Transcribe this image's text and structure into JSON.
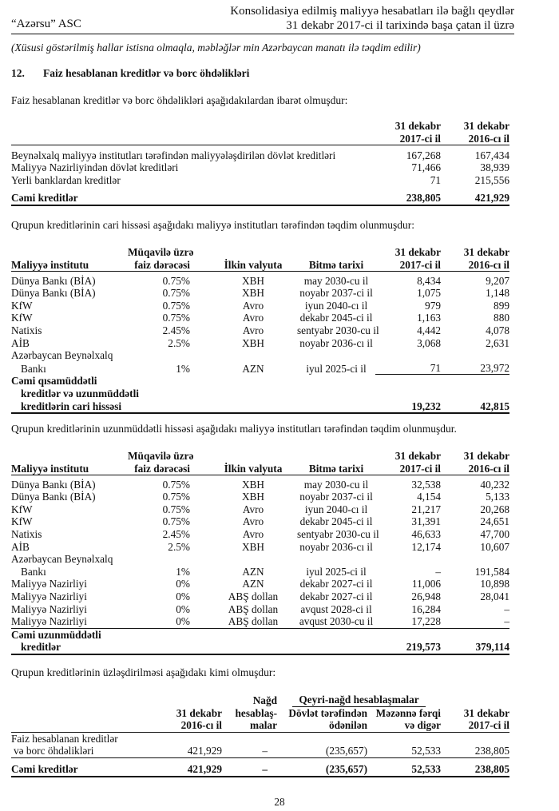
{
  "header": {
    "company": "“Azərsu” ASC",
    "title_line1": "Konsolidasiya edilmiş maliyyə hesabatları ilə bağlı qeydlər",
    "title_line2": "31 dekabr 2017-ci il tarixində başa çatan il üzrə"
  },
  "subtitle": "(Xüsusi göstərilmiş hallar istisna olmaqla, məbləğlər min Azərbaycan manatı ilə təqdim edilir)",
  "section": {
    "number": "12.",
    "title": "Faiz hesablanan kreditlər və borc öhdəlikləri"
  },
  "para1": "Faiz hesablanan kreditlər və borc öhdəlikləri aşağıdakılardan ibarət olmuşdur:",
  "table1": {
    "col_2017": [
      "31 dekabr",
      "2017-ci il"
    ],
    "col_2016": [
      "31 dekabr",
      "2016-cı il"
    ],
    "rows": [
      [
        "Beynəlxalq maliyyə institutları tərəfindən maliyyələşdirilən dövlət kreditləri",
        "167,268",
        "167,434"
      ],
      [
        "Maliyyə Nazirliyindən dövlət kreditləri",
        "71,466",
        "38,939"
      ],
      [
        "Yerli banklardan kreditlər",
        "71",
        "215,556"
      ]
    ],
    "total": [
      "Cəmi kreditlər",
      "238,805",
      "421,929"
    ]
  },
  "para2": "Qrupun kreditlərinin cari hissəsi aşağıdakı maliyyə institutları tərəfindən təqdim olunmuşdur:",
  "cols": {
    "inst": "Maliyyə institutu",
    "rate1": "Müqavilə üzrə",
    "rate2": "faiz dərəcəsi",
    "currency": "İlkin valyuta",
    "maturity": "Bitmə tarixi",
    "y2017a": "31 dekabr",
    "y2017b": "2017-ci il",
    "y2016a": "31 dekabr",
    "y2016b": "2016-cı il"
  },
  "table2": {
    "rows": [
      [
        "Dünya Bankı (BİA)",
        "0.75%",
        "XBH",
        "may 2030-cu il",
        "8,434",
        "9,207"
      ],
      [
        "Dünya Bankı (BİA)",
        "0.75%",
        "XBH",
        "noyabr 2037-ci il",
        "1,075",
        "1,148"
      ],
      [
        "KfW",
        "0.75%",
        "Avro",
        "iyun 2040-cı il",
        "979",
        "899"
      ],
      [
        "KfW",
        "0.75%",
        "Avro",
        "dekabr 2045-ci il",
        "1,163",
        "880"
      ],
      [
        "Natixis",
        "2.45%",
        "Avro",
        "sentyabr 2030-cu il",
        "4,442",
        "4,078"
      ],
      [
        "AİB",
        "2.5%",
        "XBH",
        "noyabr 2036-cı il",
        "3,068",
        "2,631"
      ]
    ],
    "aib_label1": "Azərbaycan Beynəlxalq",
    "aib_label2": "Bankı",
    "aib": [
      "1%",
      "AZN",
      "iyul 2025-ci il",
      "71",
      "23,972"
    ],
    "total_label": [
      "Cəmi qısamüddətli",
      "kreditlər və uzunmüddətli",
      "kreditlərin cari hissəsi"
    ],
    "total": [
      "19,232",
      "42,815"
    ]
  },
  "para3": "Qrupun kreditlərinin uzunmüddətli hissəsi aşağıdakı maliyyə institutları tərəfindən təqdim olunmuşdur.",
  "table3": {
    "rows": [
      [
        "Dünya Bankı (BİA)",
        "0.75%",
        "XBH",
        "may 2030-cu il",
        "32,538",
        "40,232"
      ],
      [
        "Dünya Bankı (BİA)",
        "0.75%",
        "XBH",
        "noyabr 2037-ci il",
        "4,154",
        "5,133"
      ],
      [
        "KfW",
        "0.75%",
        "Avro",
        "iyun 2040-cı il",
        "21,217",
        "20,268"
      ],
      [
        "KfW",
        "0.75%",
        "Avro",
        "dekabr 2045-ci il",
        "31,391",
        "24,651"
      ],
      [
        "Natixis",
        "2.45%",
        "Avro",
        "sentyabr 2030-cu il",
        "46,633",
        "47,700"
      ],
      [
        "AİB",
        "2.5%",
        "XBH",
        "noyabr 2036-cı il",
        "12,174",
        "10,607"
      ]
    ],
    "aib_label1": "Azərbaycan Beynəlxalq",
    "aib_label2": "Bankı",
    "aib": [
      "1%",
      "AZN",
      "iyul 2025-ci il",
      "–",
      "191,584"
    ],
    "rows2": [
      [
        "Maliyyə Nazirliyi",
        "0%",
        "AZN",
        "dekabr 2027-ci il",
        "11,006",
        "10,898"
      ],
      [
        "Maliyyə Nazirliyi",
        "0%",
        "ABŞ dollan",
        "dekabr 2027-ci il",
        "26,948",
        "28,041"
      ],
      [
        "Maliyyə Nazirliyi",
        "0%",
        "ABŞ dollan",
        "avqust 2028-ci il",
        "16,284",
        "–"
      ],
      [
        "Maliyyə Nazirliyi",
        "0%",
        "ABŞ dollan",
        "avqust 2030-cu il",
        "17,228",
        "–"
      ]
    ],
    "total_label": [
      "Cəmi uzunmüddətli",
      "kreditlər"
    ],
    "total": [
      "219,573",
      "379,114"
    ]
  },
  "para4": "Qrupun kreditlərinin üzləşdirilməsi aşağıdakı kimi olmuşdur:",
  "table4": {
    "h_2016": [
      "31 dekabr",
      "2016-cı il"
    ],
    "h_cash": [
      "Nağd",
      "hesablaş-",
      "malar"
    ],
    "h_noncash": "Qeyri-nağd hesablaşmalar",
    "h_state": [
      "Dövlət tərəfindən",
      "ödənilən"
    ],
    "h_fx": [
      "Məzənnə fərqi",
      "və digər"
    ],
    "h_2017": [
      "31 dekabr",
      "2017-ci il"
    ],
    "row_label": [
      "Faiz hesablanan kreditlər",
      "və borc öhdəlikləri"
    ],
    "row": [
      "421,929",
      "–",
      "(235,657)",
      "52,533",
      "238,805"
    ],
    "total_label": "Cəmi kreditlər",
    "total": [
      "421,929",
      "–",
      "(235,657)",
      "52,533",
      "238,805"
    ]
  },
  "page_number": "28"
}
